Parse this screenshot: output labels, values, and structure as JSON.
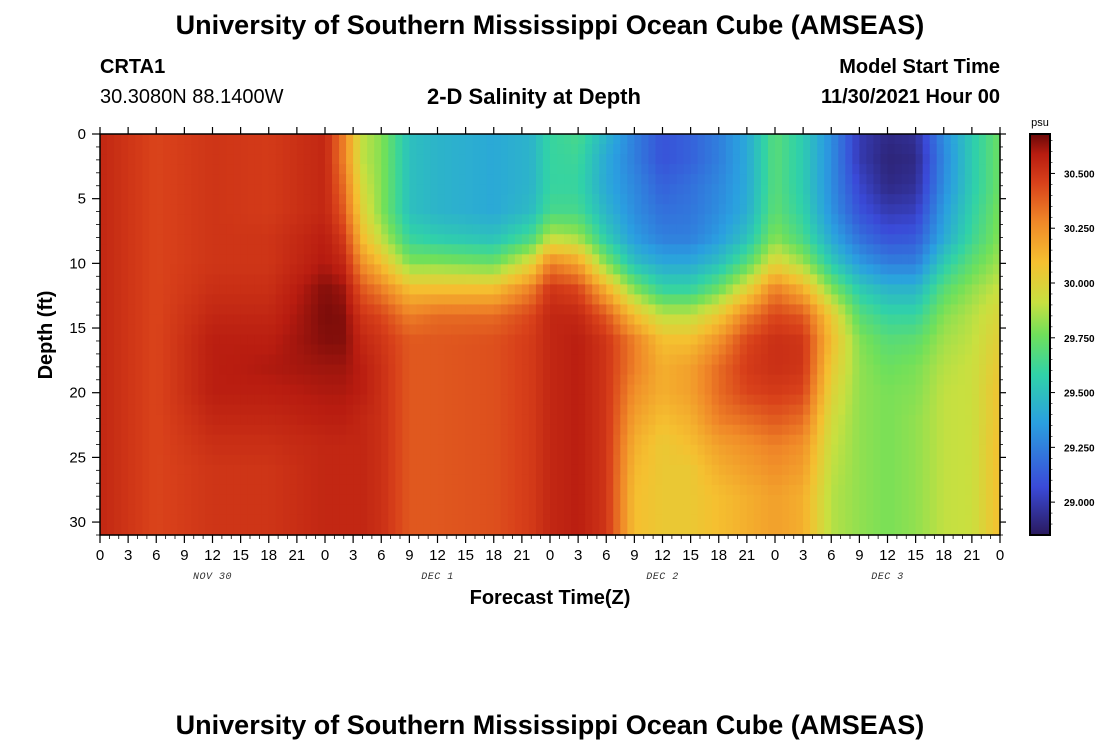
{
  "header": {
    "title": "University of Southern Mississippi Ocean Cube (AMSEAS)",
    "station": "CRTA1",
    "coords": "30.3080N  88.1400W",
    "plot_title": "2-D Salinity at Depth",
    "model_start_label": "Model Start Time",
    "model_start_value": "11/30/2021 Hour 00"
  },
  "footer": {
    "title": "University of Southern Mississippi Ocean Cube (AMSEAS)"
  },
  "colors": {
    "low": "#2a1a5e",
    "mid": "#4ee07a",
    "high": "#7a0a0a"
  },
  "chart_data": {
    "type": "heatmap",
    "title": "2-D Salinity at Depth",
    "xlabel": "Forecast Time(Z)",
    "ylabel": "Depth (ft)",
    "x_hours_range": [
      0,
      96
    ],
    "y_range_ft": [
      0,
      31
    ],
    "y_inverted": true,
    "x_tick_labels": [
      "0",
      "3",
      "6",
      "9",
      "12",
      "15",
      "18",
      "21",
      "0",
      "3",
      "6",
      "9",
      "12",
      "15",
      "18",
      "21",
      "0",
      "3",
      "6",
      "9",
      "12",
      "15",
      "18",
      "21",
      "0",
      "3",
      "6",
      "9",
      "12",
      "15",
      "18",
      "21",
      "0"
    ],
    "y_ticks": [
      0,
      5,
      10,
      15,
      20,
      25,
      30
    ],
    "date_labels": [
      {
        "text": "NOV 30",
        "hour": 12
      },
      {
        "text": "DEC 1",
        "hour": 36
      },
      {
        "text": "DEC 2",
        "hour": 60
      },
      {
        "text": "DEC 3",
        "hour": 84
      }
    ],
    "colorbar": {
      "unit": "psu",
      "min": 28.85,
      "max": 30.68,
      "ticks": [
        "29.000",
        "29.250",
        "29.500",
        "29.750",
        "30.000",
        "30.250",
        "30.500"
      ],
      "tick_values": [
        29.0,
        29.25,
        29.5,
        29.75,
        30.0,
        30.25,
        30.5
      ]
    },
    "depth_ft": [
      0,
      2,
      4,
      6,
      8,
      10,
      12,
      14,
      16,
      18,
      20,
      22,
      24,
      26,
      28,
      30,
      31
    ],
    "hours": [
      0,
      6,
      12,
      18,
      24,
      26,
      28,
      30,
      33,
      36,
      42,
      46,
      48,
      51,
      54,
      57,
      60,
      63,
      66,
      69,
      72,
      75,
      78,
      81,
      84,
      87,
      90,
      93,
      96
    ],
    "salinity": [
      [
        30.55,
        30.55,
        30.55,
        30.55,
        30.55,
        30.55,
        30.55,
        30.55,
        30.55,
        30.55,
        30.55,
        30.55,
        30.55,
        30.55,
        30.55,
        30.55,
        30.55
      ],
      [
        30.45,
        30.45,
        30.45,
        30.45,
        30.45,
        30.45,
        30.45,
        30.45,
        30.45,
        30.45,
        30.45,
        30.45,
        30.45,
        30.45,
        30.45,
        30.45,
        30.45
      ],
      [
        30.5,
        30.5,
        30.5,
        30.5,
        30.5,
        30.5,
        30.52,
        30.55,
        30.58,
        30.58,
        30.58,
        30.55,
        30.52,
        30.5,
        30.5,
        30.5,
        30.5
      ],
      [
        30.48,
        30.48,
        30.48,
        30.48,
        30.5,
        30.5,
        30.52,
        30.55,
        30.58,
        30.6,
        30.58,
        30.55,
        30.52,
        30.5,
        30.5,
        30.5,
        30.5
      ],
      [
        30.55,
        30.55,
        30.55,
        30.55,
        30.58,
        30.6,
        30.65,
        30.66,
        30.65,
        30.62,
        30.6,
        30.58,
        30.55,
        30.55,
        30.55,
        30.55,
        30.55
      ],
      [
        30.3,
        30.3,
        30.35,
        30.4,
        30.48,
        30.55,
        30.62,
        30.65,
        30.65,
        30.62,
        30.6,
        30.58,
        30.55,
        30.55,
        30.55,
        30.55,
        30.55
      ],
      [
        29.9,
        29.9,
        29.95,
        30.0,
        30.1,
        30.25,
        30.4,
        30.5,
        30.55,
        30.58,
        30.58,
        30.55,
        30.55,
        30.55,
        30.55,
        30.55,
        30.55
      ],
      [
        29.8,
        29.8,
        29.8,
        29.8,
        29.9,
        30.1,
        30.3,
        30.45,
        30.5,
        30.52,
        30.52,
        30.52,
        30.52,
        30.52,
        30.52,
        30.52,
        30.52
      ],
      [
        29.5,
        29.5,
        29.5,
        29.5,
        29.6,
        29.8,
        30.1,
        30.3,
        30.4,
        30.4,
        30.4,
        30.4,
        30.4,
        30.4,
        30.4,
        30.4,
        30.4
      ],
      [
        29.45,
        29.45,
        29.45,
        29.45,
        29.55,
        29.8,
        30.1,
        30.35,
        30.4,
        30.4,
        30.4,
        30.4,
        30.4,
        30.4,
        30.4,
        30.4,
        30.4
      ],
      [
        29.4,
        29.4,
        29.4,
        29.4,
        29.5,
        29.75,
        30.1,
        30.35,
        30.42,
        30.42,
        30.42,
        30.42,
        30.42,
        30.42,
        30.42,
        30.42,
        30.42
      ],
      [
        29.45,
        29.45,
        29.45,
        29.48,
        29.65,
        30.0,
        30.3,
        30.45,
        30.48,
        30.48,
        30.48,
        30.48,
        30.48,
        30.48,
        30.48,
        30.48,
        30.48
      ],
      [
        29.6,
        29.6,
        29.6,
        29.65,
        29.9,
        30.3,
        30.5,
        30.55,
        30.55,
        30.55,
        30.55,
        30.55,
        30.55,
        30.55,
        30.55,
        30.55,
        30.55
      ],
      [
        29.65,
        29.62,
        29.6,
        29.65,
        29.85,
        30.2,
        30.45,
        30.55,
        30.58,
        30.58,
        30.58,
        30.58,
        30.58,
        30.58,
        30.58,
        30.58,
        30.58
      ],
      [
        29.45,
        29.4,
        29.4,
        29.45,
        29.55,
        29.8,
        30.15,
        30.4,
        30.5,
        30.5,
        30.5,
        30.5,
        30.5,
        30.5,
        30.5,
        30.5,
        30.5
      ],
      [
        29.25,
        29.25,
        29.28,
        29.3,
        29.35,
        29.5,
        29.8,
        30.1,
        30.3,
        30.3,
        30.25,
        30.2,
        30.15,
        30.12,
        30.1,
        30.1,
        30.1
      ],
      [
        29.1,
        29.1,
        29.15,
        29.2,
        29.25,
        29.4,
        29.6,
        29.9,
        30.1,
        30.15,
        30.15,
        30.1,
        30.05,
        30.05,
        30.05,
        30.05,
        30.05
      ],
      [
        29.15,
        29.15,
        29.2,
        29.22,
        29.25,
        29.4,
        29.6,
        29.9,
        30.1,
        30.2,
        30.2,
        30.15,
        30.1,
        30.05,
        30.05,
        30.05,
        30.05
      ],
      [
        29.25,
        29.25,
        29.28,
        29.3,
        29.35,
        29.5,
        29.75,
        30.05,
        30.25,
        30.35,
        30.35,
        30.3,
        30.2,
        30.15,
        30.1,
        30.1,
        30.1
      ],
      [
        29.4,
        29.4,
        29.4,
        29.42,
        29.5,
        29.7,
        30.0,
        30.3,
        30.45,
        30.48,
        30.45,
        30.35,
        30.25,
        30.2,
        30.15,
        30.15,
        30.15
      ],
      [
        29.7,
        29.7,
        29.7,
        29.72,
        29.8,
        30.0,
        30.3,
        30.45,
        30.52,
        30.52,
        30.48,
        30.4,
        30.3,
        30.25,
        30.2,
        30.2,
        30.2
      ],
      [
        29.55,
        29.55,
        29.55,
        29.58,
        29.65,
        29.85,
        30.15,
        30.4,
        30.5,
        30.5,
        30.45,
        30.35,
        30.25,
        30.2,
        30.15,
        30.15,
        30.15
      ],
      [
        29.3,
        29.3,
        29.3,
        29.32,
        29.4,
        29.55,
        29.8,
        30.05,
        30.1,
        30.05,
        30.0,
        29.95,
        29.92,
        29.9,
        29.88,
        29.88,
        29.88
      ],
      [
        29.0,
        29.0,
        29.05,
        29.1,
        29.2,
        29.35,
        29.55,
        29.7,
        29.8,
        29.82,
        29.82,
        29.82,
        29.82,
        29.82,
        29.82,
        29.82,
        29.82
      ],
      [
        28.92,
        28.9,
        28.92,
        29.0,
        29.1,
        29.25,
        29.45,
        29.6,
        29.7,
        29.75,
        29.78,
        29.78,
        29.78,
        29.78,
        29.78,
        29.78,
        29.78
      ],
      [
        28.95,
        28.92,
        28.95,
        29.02,
        29.12,
        29.25,
        29.45,
        29.6,
        29.72,
        29.78,
        29.8,
        29.82,
        29.82,
        29.82,
        29.82,
        29.82,
        29.82
      ],
      [
        29.3,
        29.28,
        29.3,
        29.35,
        29.4,
        29.55,
        29.7,
        29.8,
        29.85,
        29.88,
        29.9,
        29.9,
        29.9,
        29.9,
        29.9,
        29.9,
        29.9
      ],
      [
        29.55,
        29.55,
        29.55,
        29.58,
        29.62,
        29.72,
        29.82,
        29.88,
        29.9,
        29.92,
        29.92,
        29.92,
        29.92,
        29.92,
        29.92,
        29.92,
        29.92
      ],
      [
        29.75,
        29.75,
        29.75,
        29.78,
        29.8,
        29.85,
        29.92,
        29.98,
        30.02,
        30.05,
        30.08,
        30.08,
        30.1,
        30.1,
        30.1,
        30.1,
        30.1
      ]
    ]
  }
}
